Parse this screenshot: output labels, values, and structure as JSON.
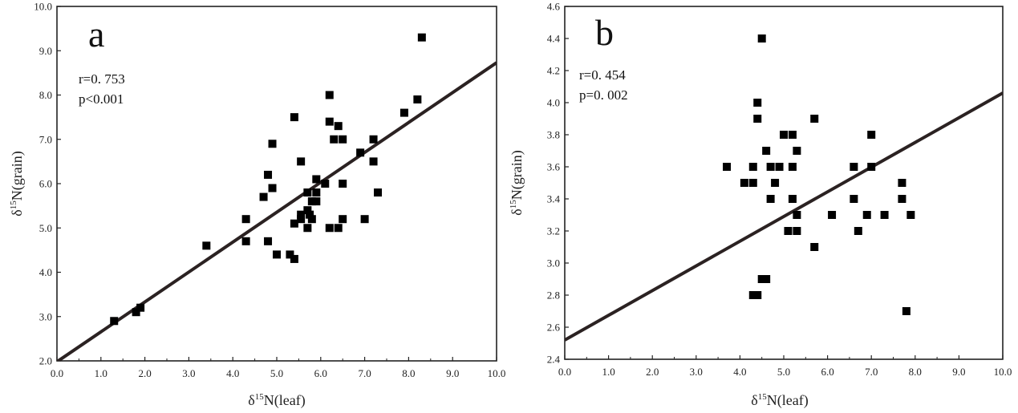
{
  "chart_data": [
    {
      "type": "scatter",
      "panel_label": "a",
      "annotations": [
        "r=0. 753",
        "p<0.001"
      ],
      "xlabel": {
        "symbol": "δ",
        "sup": "15",
        "text": "N(leaf)"
      },
      "ylabel": {
        "symbol": "δ",
        "sup": "15",
        "text": "N(grain)"
      },
      "xlim": [
        0,
        10
      ],
      "ylim": [
        2,
        10
      ],
      "xticks": [
        "0.0",
        "1.0",
        "2.0",
        "3.0",
        "4.0",
        "5.0",
        "6.0",
        "7.0",
        "8.0",
        "9.0",
        "10.0"
      ],
      "yticks": [
        "2.0",
        "3.0",
        "4.0",
        "5.0",
        "6.0",
        "7.0",
        "8.0",
        "9.0",
        "10.0"
      ],
      "grid": false,
      "points": [
        [
          1.3,
          2.9
        ],
        [
          1.8,
          3.1
        ],
        [
          1.9,
          3.2
        ],
        [
          3.4,
          4.6
        ],
        [
          4.3,
          5.2
        ],
        [
          4.3,
          4.7
        ],
        [
          4.7,
          5.7
        ],
        [
          4.8,
          6.2
        ],
        [
          4.8,
          4.7
        ],
        [
          4.9,
          6.9
        ],
        [
          4.9,
          5.9
        ],
        [
          5.0,
          4.4
        ],
        [
          5.3,
          4.4
        ],
        [
          5.4,
          4.3
        ],
        [
          5.4,
          7.5
        ],
        [
          5.4,
          5.1
        ],
        [
          5.55,
          5.2
        ],
        [
          5.55,
          5.3
        ],
        [
          5.55,
          6.5
        ],
        [
          5.7,
          5.8
        ],
        [
          5.7,
          5.4
        ],
        [
          5.7,
          5.0
        ],
        [
          5.75,
          5.3
        ],
        [
          5.8,
          5.2
        ],
        [
          5.8,
          5.6
        ],
        [
          5.9,
          6.1
        ],
        [
          5.9,
          5.8
        ],
        [
          5.9,
          5.6
        ],
        [
          6.1,
          6.0
        ],
        [
          6.2,
          8.0
        ],
        [
          6.2,
          7.4
        ],
        [
          6.2,
          5.0
        ],
        [
          6.3,
          7.0
        ],
        [
          6.4,
          7.3
        ],
        [
          6.4,
          5.0
        ],
        [
          6.5,
          7.0
        ],
        [
          6.5,
          6.0
        ],
        [
          6.5,
          5.2
        ],
        [
          6.9,
          6.7
        ],
        [
          7.0,
          5.2
        ],
        [
          7.2,
          7.0
        ],
        [
          7.2,
          6.5
        ],
        [
          7.3,
          5.8
        ],
        [
          7.9,
          7.6
        ],
        [
          8.2,
          7.9
        ],
        [
          8.3,
          9.3
        ]
      ],
      "fit": {
        "x": [
          0,
          10
        ],
        "y": [
          1.98,
          8.73
        ]
      }
    },
    {
      "type": "scatter",
      "panel_label": "b",
      "annotations": [
        "r=0. 454",
        "p=0. 002"
      ],
      "xlabel": {
        "symbol": "δ",
        "sup": "15",
        "text": "N(leaf)"
      },
      "ylabel": {
        "symbol": "δ",
        "sup": "15",
        "text": "N(grain)"
      },
      "xlim": [
        0,
        10
      ],
      "ylim": [
        2.4,
        4.6
      ],
      "xticks": [
        "0.0",
        "1.0",
        "2.0",
        "3.0",
        "4.0",
        "5.0",
        "6.0",
        "7.0",
        "8.0",
        "9.0",
        "10.0"
      ],
      "yticks": [
        "2.4",
        "2.6",
        "2.8",
        "3.0",
        "3.2",
        "3.4",
        "3.6",
        "3.8",
        "4.0",
        "4.2",
        "4.4",
        "4.6"
      ],
      "grid": false,
      "points": [
        [
          3.7,
          3.6
        ],
        [
          4.1,
          3.5
        ],
        [
          4.3,
          3.6
        ],
        [
          4.3,
          3.5
        ],
        [
          4.3,
          2.8
        ],
        [
          4.4,
          2.8
        ],
        [
          4.4,
          4.0
        ],
        [
          4.4,
          3.9
        ],
        [
          4.5,
          4.4
        ],
        [
          4.5,
          2.9
        ],
        [
          4.6,
          2.9
        ],
        [
          4.6,
          3.7
        ],
        [
          4.7,
          3.6
        ],
        [
          4.7,
          3.4
        ],
        [
          4.8,
          3.5
        ],
        [
          4.9,
          3.6
        ],
        [
          5.0,
          3.8
        ],
        [
          5.1,
          3.2
        ],
        [
          5.2,
          3.8
        ],
        [
          5.2,
          3.6
        ],
        [
          5.2,
          3.4
        ],
        [
          5.3,
          3.7
        ],
        [
          5.3,
          3.3
        ],
        [
          5.3,
          3.2
        ],
        [
          5.7,
          3.9
        ],
        [
          5.7,
          3.1
        ],
        [
          6.1,
          3.3
        ],
        [
          6.6,
          3.6
        ],
        [
          6.6,
          3.4
        ],
        [
          6.7,
          3.2
        ],
        [
          6.9,
          3.3
        ],
        [
          7.0,
          3.8
        ],
        [
          7.0,
          3.6
        ],
        [
          7.3,
          3.3
        ],
        [
          7.7,
          3.5
        ],
        [
          7.7,
          3.4
        ],
        [
          7.8,
          2.7
        ],
        [
          7.9,
          3.3
        ]
      ],
      "fit": {
        "x": [
          0,
          10
        ],
        "y": [
          2.52,
          4.06
        ]
      }
    }
  ]
}
